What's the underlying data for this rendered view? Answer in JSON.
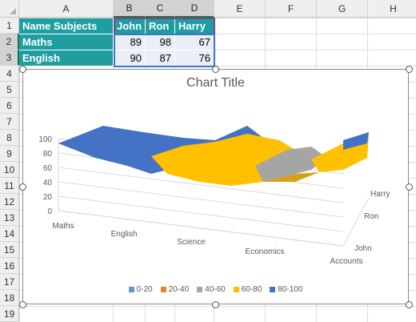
{
  "columns": [
    "A",
    "B",
    "C",
    "D",
    "E",
    "F",
    "G",
    "H"
  ],
  "rows": [
    "1",
    "2",
    "3",
    "4",
    "5",
    "6",
    "7",
    "8",
    "9",
    "10",
    "11",
    "12",
    "13",
    "14",
    "15",
    "16",
    "17",
    "18",
    "19"
  ],
  "table": {
    "header": [
      "Name Subjects",
      "John",
      "Ron",
      "Harry"
    ],
    "body": [
      {
        "label": "Maths",
        "values": [
          "89",
          "98",
          "67"
        ]
      },
      {
        "label": "English",
        "values": [
          "90",
          "87",
          "76"
        ]
      }
    ]
  },
  "colors": {
    "header_fill": "#1f9ea2",
    "value_fill": "#e9eef7",
    "band_0_20": "#5b9bd5",
    "band_20_40": "#ed7d31",
    "band_40_60": "#a5a5a5",
    "band_60_80": "#ffc000",
    "band_80_100": "#4472c4"
  },
  "chart_data": {
    "type": "surface",
    "title": "Chart Title",
    "categories": [
      "Maths",
      "English",
      "Science",
      "Economics",
      "Accounts"
    ],
    "series": [
      {
        "name": "John",
        "values": [
          89,
          90,
          null,
          null,
          null
        ]
      },
      {
        "name": "Ron",
        "values": [
          98,
          87,
          null,
          null,
          null
        ]
      },
      {
        "name": "Harry",
        "values": [
          67,
          76,
          null,
          null,
          null
        ]
      }
    ],
    "z_ticks": [
      "0",
      "20",
      "40",
      "60",
      "80",
      "100"
    ],
    "depth_labels": [
      "John",
      "Ron",
      "Harry"
    ],
    "zlim": [
      0,
      100
    ],
    "legend_position": "bottom",
    "legend": [
      "0-20",
      "20-40",
      "40-60",
      "60-80",
      "80-100"
    ]
  }
}
